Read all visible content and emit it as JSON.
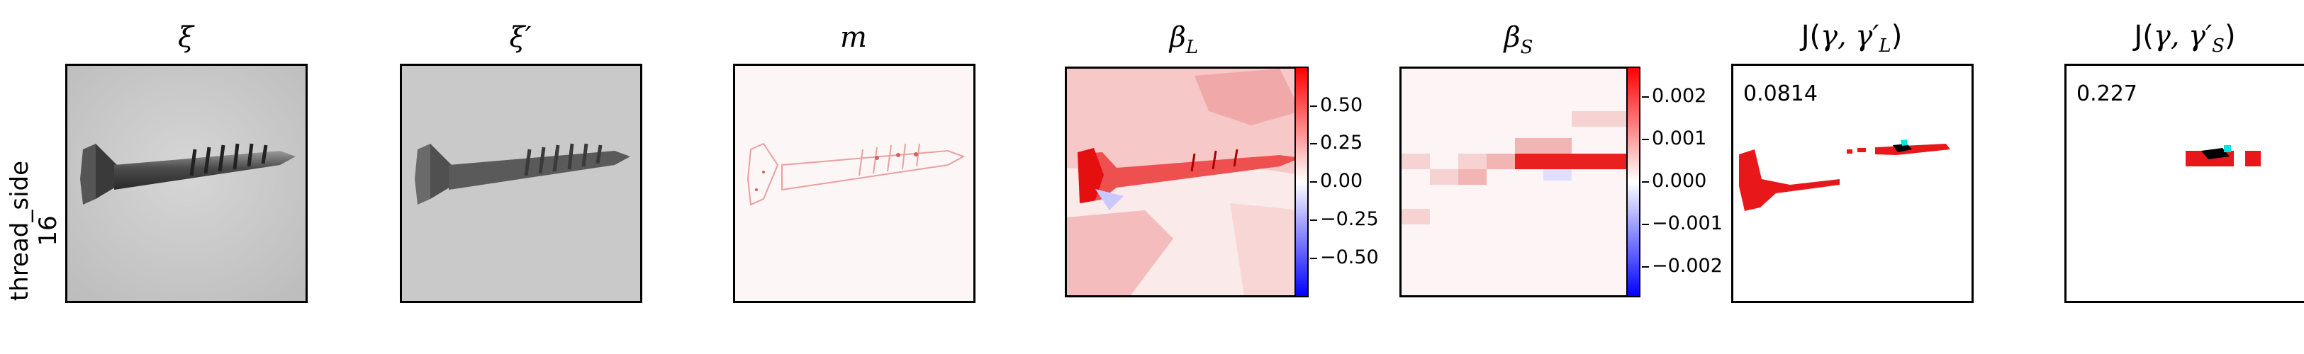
{
  "row_label": {
    "line1": "thread_side",
    "line2": "16"
  },
  "panels": [
    {
      "title": "ξ"
    },
    {
      "title": "ξ′"
    },
    {
      "title": "m"
    },
    {
      "title": "β_L",
      "title_main": "β",
      "title_sub": "L"
    },
    {
      "title": "β_S",
      "title_main": "β",
      "title_sub": "S"
    },
    {
      "title": "J(γ, γ′_L)",
      "title_main": "J(",
      "title_sym": "γ, γ′",
      "title_sub": "L",
      "title_end": ")",
      "score": "0.0814"
    },
    {
      "title": "J(γ, γ′_S)",
      "title_main": "J(",
      "title_sym": "γ, γ′",
      "title_sub": "S",
      "title_end": ")",
      "score": "0.227"
    }
  ],
  "colorbar_L": {
    "ticks": [
      "0.50",
      "0.25",
      "0.00",
      "−0.25",
      "−0.50"
    ],
    "colormap": "bwr",
    "low": "#0000ff",
    "mid": "#ffffff",
    "high": "#ff0000"
  },
  "colorbar_S": {
    "ticks": [
      "0.002",
      "0.001",
      "0.000",
      "−0.001",
      "−0.002"
    ],
    "colormap": "bwr",
    "low": "#0000ff",
    "mid": "#ffffff",
    "high": "#ff0000"
  },
  "colors": {
    "heat_red": "#e8181a",
    "overlap_black": "#000000",
    "overlap_cyan": "#00e5e5"
  }
}
